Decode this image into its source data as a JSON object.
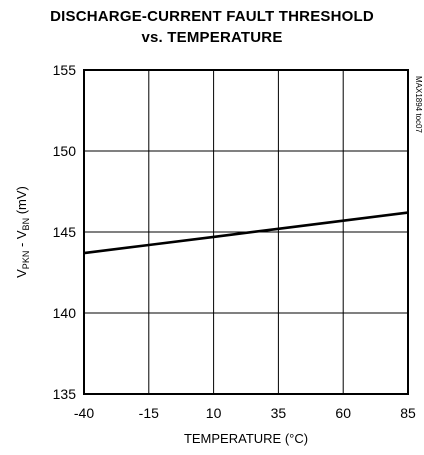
{
  "chart_data": {
    "type": "line",
    "title_line1": "DISCHARGE-CURRENT FAULT THRESHOLD",
    "title_line2": "vs. TEMPERATURE",
    "xlabel": "TEMPERATURE (°C)",
    "ylabel": {
      "v1": "V",
      "sub1": "PKN",
      "mid": " - V",
      "sub2": "BN",
      "unit": " (mV)"
    },
    "xlim": [
      -40,
      85
    ],
    "ylim": [
      135,
      155
    ],
    "xticks": [
      "-40",
      "-15",
      "10",
      "35",
      "60",
      "85"
    ],
    "yticks": [
      "155",
      "150",
      "145",
      "140",
      "135"
    ],
    "grid": true,
    "annotation": "MAX1894 toc07",
    "series": [
      {
        "x": [
          -40,
          -15,
          10,
          35,
          60,
          85
        ],
        "y": [
          143.7,
          144.2,
          144.7,
          145.2,
          145.7,
          146.2
        ]
      }
    ]
  }
}
